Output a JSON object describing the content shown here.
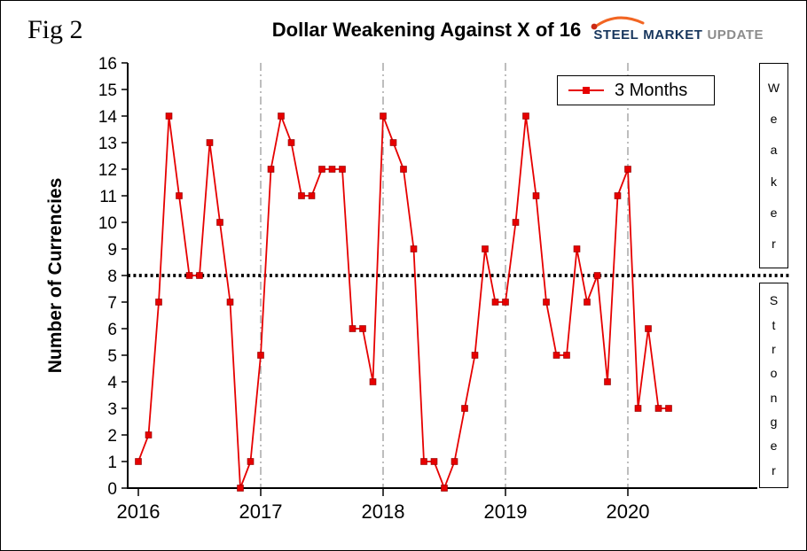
{
  "figure": {
    "fig_label": "Fig 2",
    "title": "Dollar Weakening Against X of 16"
  },
  "logo": {
    "word1": "STEEL",
    "word2": "MARKET",
    "word3": "UPDATE",
    "colors": {
      "blue": "#17365d",
      "gray": "#8c8c8c",
      "orange": "#f26522",
      "red": "#cc2a14"
    }
  },
  "chart_data": {
    "type": "line",
    "title": "Dollar Weakening Against X of 16",
    "ylabel": "Number of Currencies",
    "ylim": [
      0,
      16
    ],
    "ytick_step": 1,
    "x_years": [
      2016,
      2017,
      2018,
      2019,
      2020
    ],
    "legend": {
      "label": "3 Months",
      "position": "top-right"
    },
    "series": [
      {
        "name": "3 Months",
        "color": "#e60000",
        "marker": "square",
        "values_by_year": {
          "2016": [
            1,
            2,
            7,
            14,
            11,
            8,
            8,
            13,
            10,
            7,
            0,
            1
          ],
          "2017": [
            5,
            12,
            14,
            13,
            11,
            11,
            12,
            12,
            12,
            6,
            6,
            4
          ],
          "2018": [
            14,
            13,
            12,
            9,
            1,
            1,
            0,
            1,
            3,
            5,
            9,
            7
          ],
          "2019": [
            7,
            10,
            14,
            11,
            7,
            5,
            5,
            9,
            7,
            8,
            4,
            11
          ],
          "2020": [
            12,
            3,
            6,
            3,
            3
          ]
        }
      }
    ],
    "reference_line": {
      "y": 8,
      "style": "dotted",
      "color": "#000000"
    },
    "gridlines": {
      "vertical_at_years": [
        2017,
        2018,
        2019,
        2020
      ],
      "style": "dash-dot",
      "color": "#9a9a9a"
    },
    "right_labels": {
      "upper": "Weaker",
      "lower": "Stronger"
    }
  }
}
